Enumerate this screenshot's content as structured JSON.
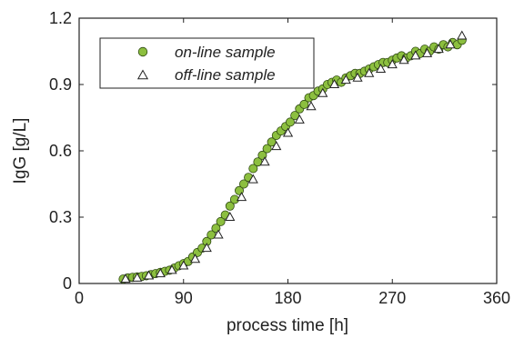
{
  "chart_data": {
    "type": "scatter",
    "xlabel": "process time [h]",
    "ylabel": "IgG [g/L]",
    "xlim": [
      0,
      360
    ],
    "ylim": [
      0,
      1.2
    ],
    "xticks": [
      "0",
      "90",
      "180",
      "270",
      "360"
    ],
    "yticks": [
      "0",
      "0.3",
      "0.6",
      "0.9",
      "1.2"
    ],
    "grid": false,
    "legend_position": "top-left",
    "series": [
      {
        "name": "on-line sample",
        "marker": "circle",
        "color": "#8cbf3f",
        "stroke": "#2f4a12",
        "x": [
          38,
          42,
          46,
          50,
          54,
          58,
          62,
          66,
          70,
          74,
          78,
          82,
          86,
          90,
          94,
          98,
          102,
          106,
          110,
          114,
          118,
          122,
          126,
          130,
          134,
          138,
          142,
          146,
          150,
          154,
          158,
          162,
          166,
          170,
          174,
          178,
          182,
          186,
          190,
          194,
          198,
          202,
          206,
          210,
          214,
          218,
          222,
          226,
          230,
          234,
          238,
          242,
          246,
          250,
          254,
          258,
          262,
          266,
          270,
          274,
          278,
          282,
          286,
          290,
          294,
          298,
          302,
          306,
          310,
          314,
          318,
          322,
          326,
          330
        ],
        "y": [
          0.02,
          0.025,
          0.028,
          0.03,
          0.032,
          0.035,
          0.04,
          0.045,
          0.05,
          0.055,
          0.06,
          0.07,
          0.08,
          0.09,
          0.1,
          0.12,
          0.14,
          0.16,
          0.19,
          0.22,
          0.25,
          0.28,
          0.31,
          0.35,
          0.38,
          0.42,
          0.45,
          0.48,
          0.52,
          0.55,
          0.58,
          0.61,
          0.64,
          0.67,
          0.69,
          0.71,
          0.73,
          0.76,
          0.79,
          0.81,
          0.84,
          0.85,
          0.87,
          0.88,
          0.9,
          0.91,
          0.92,
          0.91,
          0.93,
          0.94,
          0.95,
          0.95,
          0.96,
          0.97,
          0.98,
          0.99,
          1.0,
          1.0,
          1.01,
          1.02,
          1.03,
          1.02,
          1.03,
          1.05,
          1.04,
          1.06,
          1.05,
          1.07,
          1.06,
          1.08,
          1.07,
          1.09,
          1.08,
          1.1
        ]
      },
      {
        "name": "off-line sample",
        "marker": "triangle",
        "color": "#ffffff",
        "stroke": "#222222",
        "x": [
          40,
          50,
          60,
          70,
          80,
          90,
          100,
          110,
          120,
          130,
          140,
          150,
          160,
          170,
          180,
          190,
          200,
          210,
          220,
          230,
          240,
          250,
          260,
          270,
          280,
          290,
          300,
          310,
          320,
          330
        ],
        "y": [
          0.02,
          0.025,
          0.035,
          0.045,
          0.06,
          0.08,
          0.11,
          0.16,
          0.22,
          0.3,
          0.39,
          0.47,
          0.55,
          0.62,
          0.68,
          0.74,
          0.8,
          0.86,
          0.9,
          0.92,
          0.93,
          0.95,
          0.97,
          0.99,
          1.01,
          1.03,
          1.04,
          1.06,
          1.08,
          1.12
        ]
      }
    ]
  }
}
